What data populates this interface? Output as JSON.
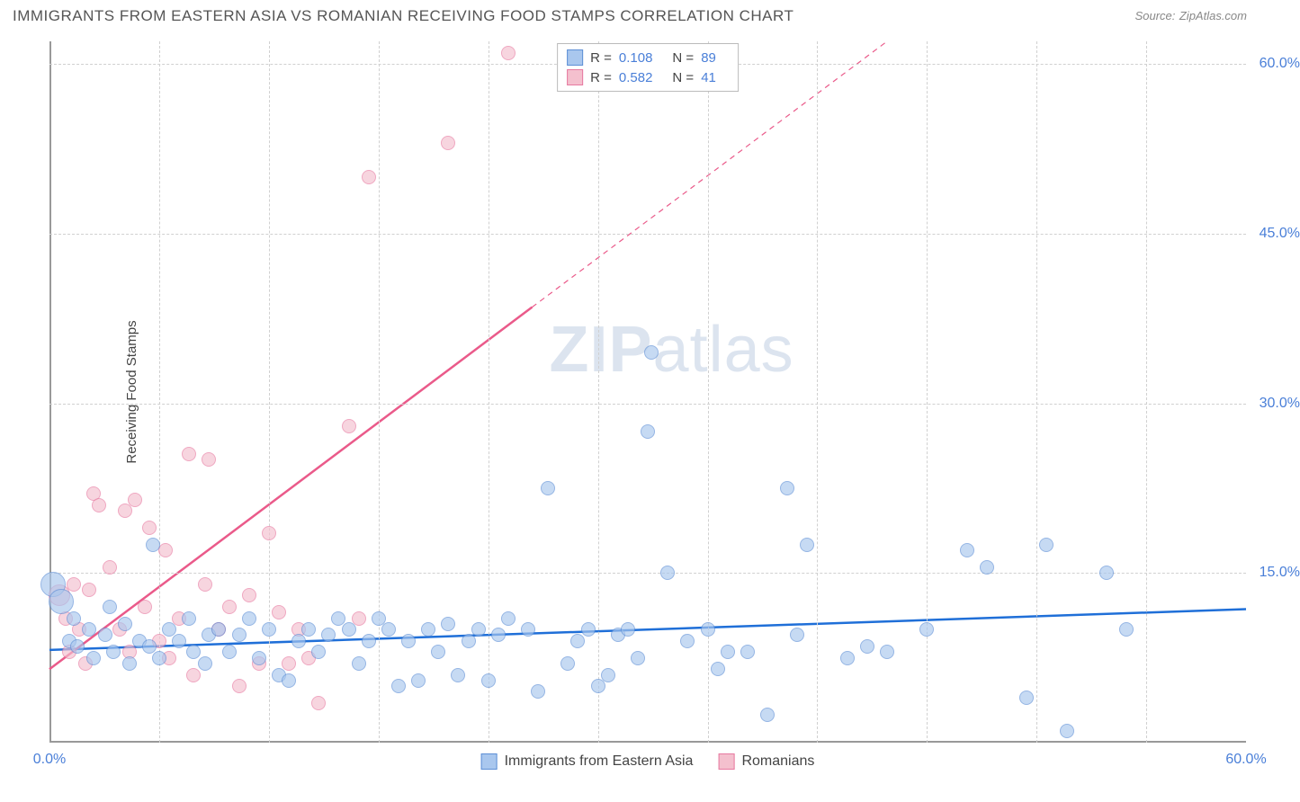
{
  "title": "IMMIGRANTS FROM EASTERN ASIA VS ROMANIAN RECEIVING FOOD STAMPS CORRELATION CHART",
  "source_label": "Source:",
  "source_value": "ZipAtlas.com",
  "ylabel": "Receiving Food Stamps",
  "watermark_a": "ZIP",
  "watermark_b": "atlas",
  "chart": {
    "type": "scatter",
    "xlim": [
      0,
      60
    ],
    "ylim": [
      0,
      62
    ],
    "x_ticks": [
      0,
      60
    ],
    "x_tick_labels": [
      "0.0%",
      "60.0%"
    ],
    "y_ticks": [
      15,
      30,
      45,
      60
    ],
    "y_tick_labels": [
      "15.0%",
      "30.0%",
      "45.0%",
      "60.0%"
    ],
    "x_minor_grid": [
      5.5,
      11,
      16.5,
      22,
      27.5,
      33,
      38.5,
      44,
      49.5,
      55
    ],
    "y_grid": [
      15,
      30,
      45,
      60
    ],
    "background_color": "#ffffff",
    "grid_color": "#d0d0d0",
    "axis_color": "#999999",
    "point_radius": 8,
    "point_radius_large": 14,
    "series": [
      {
        "name": "Immigrants from Eastern Asia",
        "fill": "#a9c7ee",
        "stroke": "#5d8fd6",
        "fill_opacity": 0.65,
        "r_label": "R =",
        "r_value": "0.108",
        "n_label": "N =",
        "n_value": "89",
        "regression": {
          "x1": 0,
          "y1": 8.2,
          "x2": 60,
          "y2": 11.8,
          "color": "#1f6fd8",
          "width": 2.5,
          "dash": "none"
        },
        "points": [
          [
            0.2,
            14,
            14
          ],
          [
            0.6,
            12.5,
            14
          ],
          [
            1,
            9
          ],
          [
            1.2,
            11
          ],
          [
            1.4,
            8.5
          ],
          [
            2,
            10
          ],
          [
            2.2,
            7.5
          ],
          [
            2.8,
            9.5
          ],
          [
            3,
            12
          ],
          [
            3.2,
            8
          ],
          [
            3.8,
            10.5
          ],
          [
            4,
            7
          ],
          [
            4.5,
            9
          ],
          [
            5,
            8.5
          ],
          [
            5.2,
            17.5
          ],
          [
            5.5,
            7.5
          ],
          [
            6,
            10
          ],
          [
            6.5,
            9
          ],
          [
            7,
            11
          ],
          [
            7.2,
            8
          ],
          [
            7.8,
            7
          ],
          [
            8,
            9.5
          ],
          [
            8.5,
            10
          ],
          [
            9,
            8
          ],
          [
            9.5,
            9.5
          ],
          [
            10,
            11
          ],
          [
            10.5,
            7.5
          ],
          [
            11,
            10
          ],
          [
            11.5,
            6
          ],
          [
            12,
            5.5
          ],
          [
            12.5,
            9
          ],
          [
            13,
            10
          ],
          [
            13.5,
            8
          ],
          [
            14,
            9.5
          ],
          [
            14.5,
            11
          ],
          [
            15,
            10
          ],
          [
            15.5,
            7
          ],
          [
            16,
            9
          ],
          [
            16.5,
            11
          ],
          [
            17,
            10
          ],
          [
            17.5,
            5
          ],
          [
            18,
            9
          ],
          [
            18.5,
            5.5
          ],
          [
            19,
            10
          ],
          [
            19.5,
            8
          ],
          [
            20,
            10.5
          ],
          [
            20.5,
            6
          ],
          [
            21,
            9
          ],
          [
            21.5,
            10
          ],
          [
            22,
            5.5
          ],
          [
            22.5,
            9.5
          ],
          [
            23,
            11
          ],
          [
            24,
            10
          ],
          [
            24.5,
            4.5
          ],
          [
            25,
            22.5
          ],
          [
            26,
            7
          ],
          [
            26.5,
            9
          ],
          [
            27,
            10
          ],
          [
            27.5,
            5
          ],
          [
            28,
            6
          ],
          [
            28.5,
            9.5
          ],
          [
            29,
            10
          ],
          [
            29.5,
            7.5
          ],
          [
            30,
            27.5
          ],
          [
            30.2,
            34.5
          ],
          [
            31,
            15
          ],
          [
            32,
            9
          ],
          [
            33,
            10
          ],
          [
            33.5,
            6.5
          ],
          [
            34,
            8
          ],
          [
            35,
            8
          ],
          [
            36,
            2.5
          ],
          [
            37,
            22.5
          ],
          [
            37.5,
            9.5
          ],
          [
            38,
            17.5
          ],
          [
            40,
            7.5
          ],
          [
            41,
            8.5
          ],
          [
            42,
            8
          ],
          [
            44,
            10
          ],
          [
            46,
            17
          ],
          [
            47,
            15.5
          ],
          [
            49,
            4
          ],
          [
            50,
            17.5
          ],
          [
            51,
            1
          ],
          [
            53,
            15
          ],
          [
            54,
            10
          ]
        ]
      },
      {
        "name": "Romanians",
        "fill": "#f4c0ce",
        "stroke": "#e779a0",
        "fill_opacity": 0.65,
        "r_label": "R =",
        "r_value": "0.582",
        "n_label": "N =",
        "n_value": "41",
        "regression_dash": {
          "x1": 24.2,
          "y1": 38.5,
          "x2": 42,
          "y2": 62,
          "color": "#ea5a8a",
          "width": 1.2,
          "dash": "6,5"
        },
        "regression": {
          "x1": 0,
          "y1": 6.5,
          "x2": 24.2,
          "y2": 38.5,
          "color": "#ea5a8a",
          "width": 2.5,
          "dash": "none"
        },
        "points": [
          [
            0.5,
            13,
            12
          ],
          [
            0.8,
            11
          ],
          [
            1,
            8
          ],
          [
            1.2,
            14
          ],
          [
            1.5,
            10
          ],
          [
            1.8,
            7
          ],
          [
            2,
            13.5
          ],
          [
            2.2,
            22
          ],
          [
            2.5,
            21
          ],
          [
            3,
            15.5
          ],
          [
            3.5,
            10
          ],
          [
            3.8,
            20.5
          ],
          [
            4,
            8
          ],
          [
            4.3,
            21.5
          ],
          [
            4.8,
            12
          ],
          [
            5,
            19
          ],
          [
            5.5,
            9
          ],
          [
            5.8,
            17
          ],
          [
            6,
            7.5
          ],
          [
            6.5,
            11
          ],
          [
            7,
            25.5
          ],
          [
            7.2,
            6
          ],
          [
            7.8,
            14
          ],
          [
            8,
            25
          ],
          [
            8.5,
            10
          ],
          [
            9,
            12
          ],
          [
            9.5,
            5
          ],
          [
            10,
            13
          ],
          [
            10.5,
            7
          ],
          [
            11,
            18.5
          ],
          [
            11.5,
            11.5
          ],
          [
            12,
            7
          ],
          [
            12.5,
            10
          ],
          [
            13,
            7.5
          ],
          [
            13.5,
            3.5
          ],
          [
            15,
            28
          ],
          [
            15.5,
            11
          ],
          [
            16,
            50
          ],
          [
            20,
            53
          ],
          [
            23,
            61
          ]
        ]
      }
    ]
  }
}
